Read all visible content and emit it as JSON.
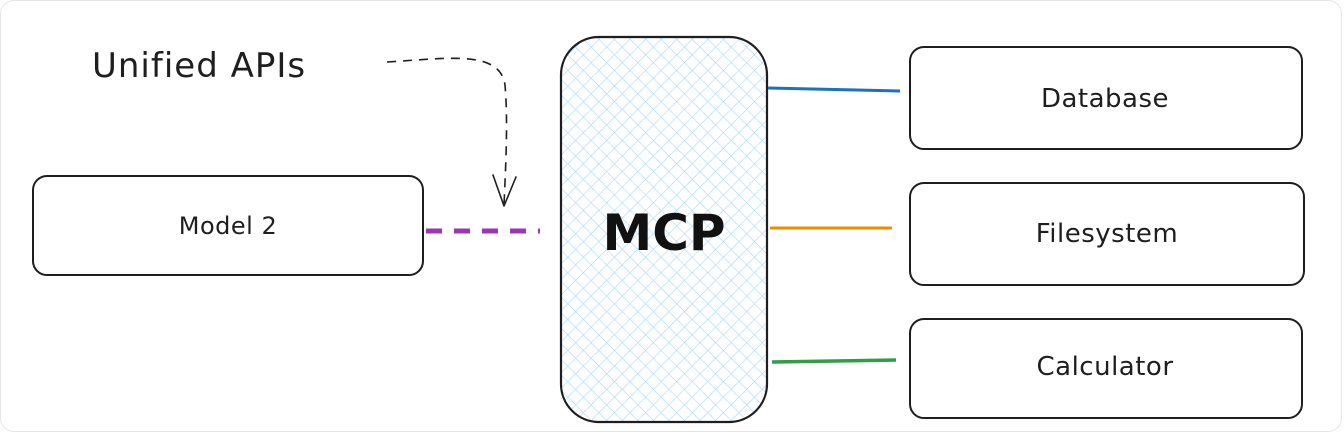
{
  "annotation": {
    "text": "Unified APIs"
  },
  "hub": {
    "label": "MCP",
    "fill_color": "#a5d8ff",
    "pattern": "cross-hatch"
  },
  "client": {
    "label": "Model 2",
    "connector_color": "#9c36b5",
    "connector_style": "dashed"
  },
  "tools": [
    {
      "label": "Database",
      "connector_color": "#1971c2"
    },
    {
      "label": "Filesystem",
      "connector_color": "#f08c00"
    },
    {
      "label": "Calculator",
      "connector_color": "#2f9e44"
    }
  ],
  "arrow": {
    "style": "dashed",
    "color": "#1e1e1e"
  }
}
